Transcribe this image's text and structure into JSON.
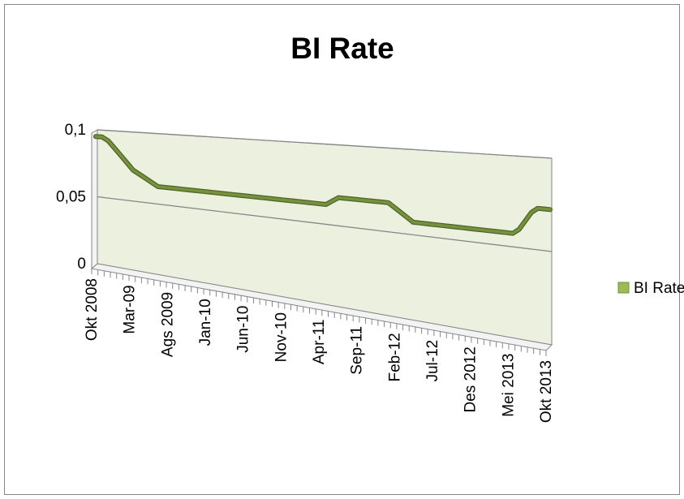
{
  "chart_data": {
    "type": "line",
    "title": "BI Rate",
    "xlabel": "",
    "ylabel": "",
    "ylim": [
      0,
      0.1
    ],
    "y_ticks": [
      {
        "value": 0.1,
        "label": "0,1"
      },
      {
        "value": 0.05,
        "label": "0,05"
      },
      {
        "value": 0,
        "label": "0"
      }
    ],
    "x_tick_labels": [
      "Okt 2008",
      "Mar-09",
      "Ags 2009",
      "Jan-10",
      "Jun-10",
      "Nov-10",
      "Apr-11",
      "Sep-11",
      "Feb-12",
      "Jul-12",
      "Des 2012",
      "Mei 2013",
      "Okt 2013"
    ],
    "grid": true,
    "legend_position": "right",
    "colors": {
      "line": "#76923C",
      "line_dark": "#4F6228",
      "plot_fill": "#EBF1DE",
      "axis": "#868686",
      "grid": "#868686",
      "legend_swatch": "#9BBB59",
      "border": "#868686"
    },
    "series": [
      {
        "name": "BI Rate",
        "values": [
          0.095,
          0.095,
          0.0925,
          0.0875,
          0.0825,
          0.0775,
          0.0725,
          0.07,
          0.0675,
          0.065,
          0.0625,
          0.0625,
          0.0625,
          0.0625,
          0.0625,
          0.0625,
          0.0625,
          0.0625,
          0.0625,
          0.0625,
          0.0625,
          0.0625,
          0.0625,
          0.0625,
          0.0625,
          0.0625,
          0.0625,
          0.0625,
          0.0625,
          0.0625,
          0.0625,
          0.0625,
          0.0625,
          0.0625,
          0.0625,
          0.0625,
          0.0625,
          0.0625,
          0.065,
          0.0675,
          0.0675,
          0.0675,
          0.0675,
          0.0675,
          0.0675,
          0.0675,
          0.0675,
          0.0675,
          0.065,
          0.0625,
          0.06,
          0.0575,
          0.0575,
          0.0575,
          0.0575,
          0.0575,
          0.0575,
          0.0575,
          0.0575,
          0.0575,
          0.0575,
          0.0575,
          0.0575,
          0.0575,
          0.0575,
          0.0575,
          0.0575,
          0.0575,
          0.06,
          0.065,
          0.07,
          0.0725,
          0.0725,
          0.0725
        ]
      }
    ]
  }
}
